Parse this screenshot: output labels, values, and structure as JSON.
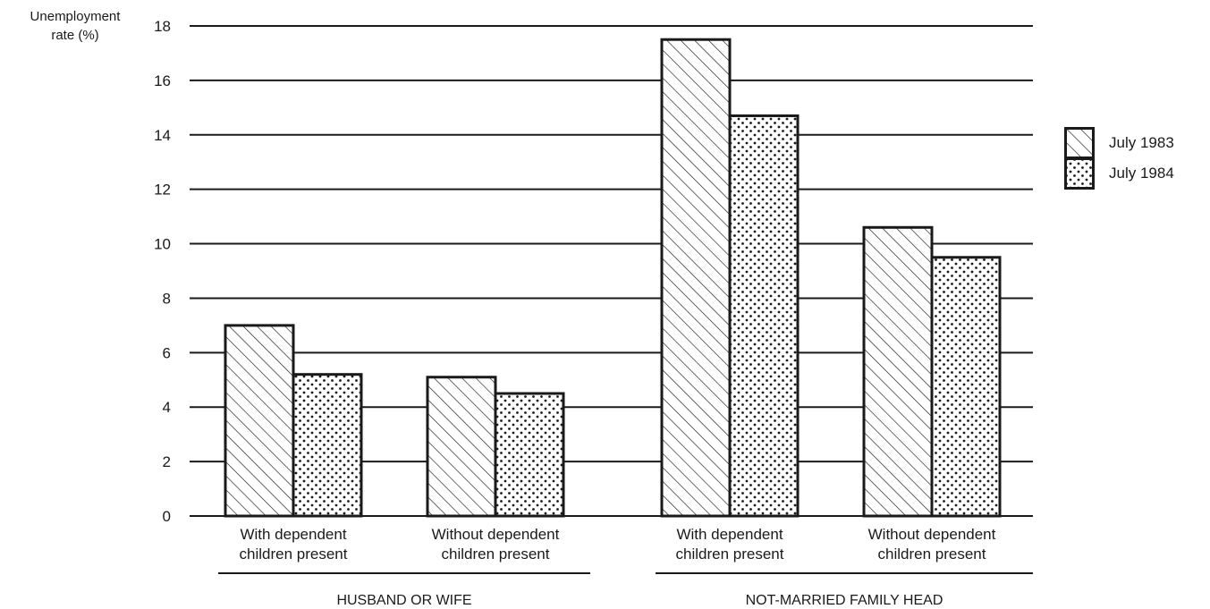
{
  "chart_data": {
    "type": "bar",
    "ylabel": "Unemployment\nrate (%)",
    "ylim": [
      0,
      18
    ],
    "yticks": [
      0,
      2,
      4,
      6,
      8,
      10,
      12,
      14,
      16,
      18
    ],
    "grid": true,
    "legend_position": "right",
    "categories": [
      "With dependent\nchildren present",
      "Without dependent\nchildren present",
      "With dependent\nchildren present",
      "Without dependent\nchildren present"
    ],
    "groups": [
      {
        "label": "HUSBAND OR WIFE",
        "categories": [
          0,
          1
        ]
      },
      {
        "label": "NOT-MARRIED FAMILY HEAD",
        "categories": [
          2,
          3
        ]
      }
    ],
    "series": [
      {
        "name": "July 1983",
        "pattern": "hatch",
        "values": [
          7.0,
          5.1,
          17.5,
          10.6
        ]
      },
      {
        "name": "July 1984",
        "pattern": "dots",
        "values": [
          5.2,
          4.5,
          14.7,
          9.5
        ]
      }
    ]
  },
  "colors": {
    "ink": "#1a1a1a",
    "background": "#ffffff"
  }
}
